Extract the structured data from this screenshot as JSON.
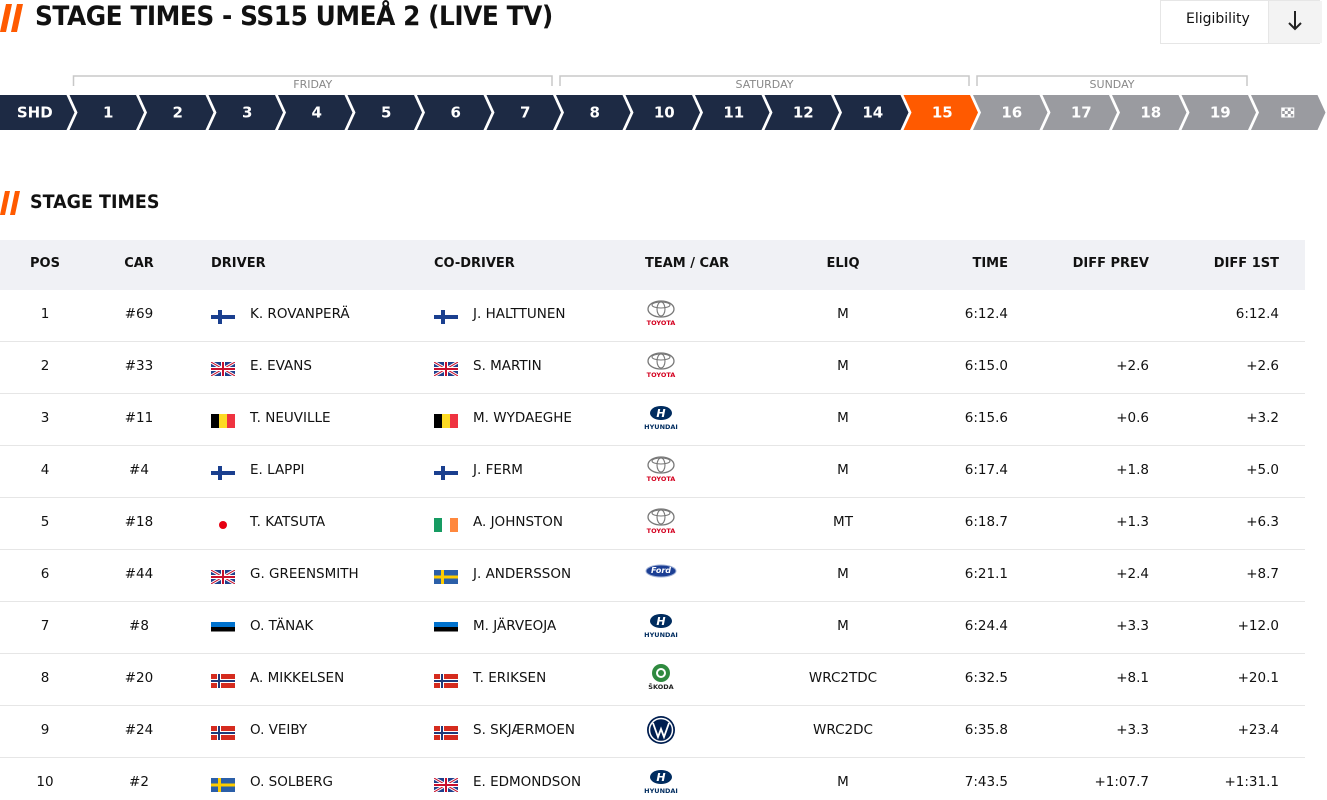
{
  "header": {
    "title": "STAGE TIMES - SS15 UMEÅ 2 (LIVE TV)",
    "eligibility": "Eligibility"
  },
  "days": [
    "FRIDAY",
    "SATURDAY",
    "SUNDAY"
  ],
  "stages": [
    "SHD",
    "1",
    "2",
    "3",
    "4",
    "5",
    "6",
    "7",
    "8",
    "10",
    "11",
    "12",
    "14",
    "15",
    "16",
    "17",
    "18",
    "19"
  ],
  "section_title": "STAGE TIMES",
  "table": {
    "columns": [
      "POS",
      "CAR",
      "DRIVER",
      "CO-DRIVER",
      "TEAM / CAR",
      "ELIQ",
      "TIME",
      "DIFF PREV",
      "DIFF 1ST"
    ],
    "rows": [
      [
        "1",
        "#69",
        "K. ROVANPERÄ",
        "J. HALTTUNEN",
        "TOYOTA",
        "M",
        "6:12.4",
        null,
        "6:12.4"
      ],
      [
        "2",
        "#33",
        "E. EVANS",
        "S. MARTIN",
        "TOYOTA",
        "M",
        "6:15.0",
        "+2.6",
        "+2.6"
      ],
      [
        "3",
        "#11",
        "T. NEUVILLE",
        "M. WYDAEGHE",
        "HYUNDAI",
        "M",
        "6:15.6",
        "+0.6",
        "+3.2"
      ],
      [
        "4",
        "#4",
        "E. LAPPI",
        "J. FERM",
        "TOYOTA",
        "M",
        "6:17.4",
        "+1.8",
        "+5.0"
      ],
      [
        "5",
        "#18",
        "T. KATSUTA",
        "A. JOHNSTON",
        "TOYOTA",
        "MT",
        "6:18.7",
        "+1.3",
        "+6.3"
      ],
      [
        "6",
        "#44",
        "G. GREENSMITH",
        "J. ANDERSSON",
        "Ford",
        "M",
        "6:21.1",
        "+2.4",
        "+8.7"
      ],
      [
        "7",
        "#8",
        "O. TÄNAK",
        "M. JÄRVEOJA",
        "HYUNDAI",
        "M",
        "6:24.4",
        "+3.3",
        "+12.0"
      ],
      [
        "8",
        "#20",
        "A. MIKKELSEN",
        "T. ERIKSEN",
        "ŠKODA",
        "WRC2TDC",
        "6:32.5",
        "+8.1",
        "+20.1"
      ],
      [
        "9",
        "#24",
        "O. VEIBY",
        "S. SKJÆRMOEN",
        null,
        "WRC2DC",
        "6:35.8",
        "+3.3",
        "+23.4"
      ],
      [
        "10",
        "#2",
        "O. SOLBERG",
        "E. EDMONDSON",
        "HYUNDAI",
        "M",
        "7:43.5",
        "+1:07.7",
        "+1:31.1"
      ]
    ]
  }
}
